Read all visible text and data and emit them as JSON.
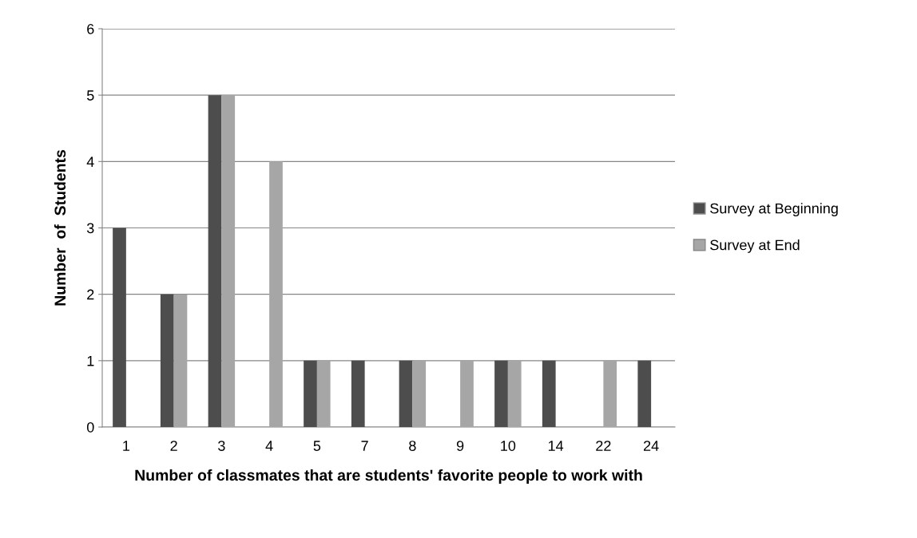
{
  "chart_data": {
    "type": "bar",
    "xlabel": "Number of classmates that are students' favorite people to work with",
    "ylabel": "Number  of  Students",
    "categories": [
      "1",
      "2",
      "3",
      "4",
      "5",
      "7",
      "8",
      "9",
      "10",
      "14",
      "22",
      "24"
    ],
    "series": [
      {
        "name": "Survey at Beginning",
        "color": "#4d4d4d",
        "values": [
          3,
          2,
          5,
          0,
          1,
          1,
          1,
          0,
          1,
          1,
          0,
          1
        ]
      },
      {
        "name": "Survey at End",
        "color": "#a6a6a6",
        "values": [
          0,
          2,
          5,
          4,
          1,
          0,
          1,
          1,
          1,
          0,
          1,
          0
        ]
      }
    ],
    "ylim": [
      0,
      6
    ],
    "yticks": [
      0,
      1,
      2,
      3,
      4,
      5,
      6
    ],
    "grid": "y",
    "legend": "right"
  }
}
